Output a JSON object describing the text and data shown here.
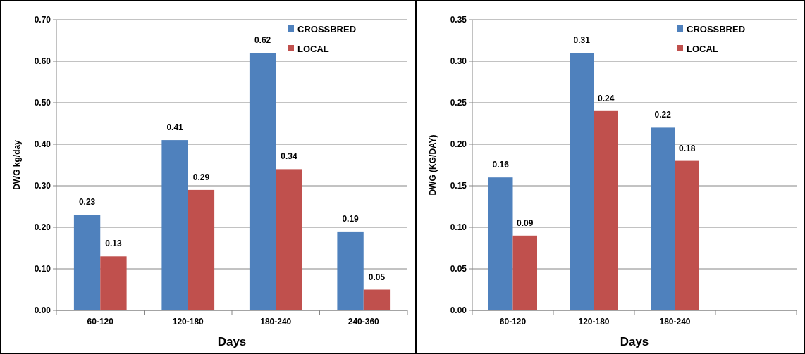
{
  "chart_data": [
    {
      "type": "bar",
      "xlabel": "Days",
      "ylabel": "DWG kg/day",
      "categories": [
        "60-120",
        "120-180",
        "180-240",
        "240-360"
      ],
      "series": [
        {
          "name": "CROSSBRED",
          "color": "#4f81bd",
          "values": [
            0.23,
            0.41,
            0.62,
            0.19
          ]
        },
        {
          "name": "LOCAL",
          "color": "#c0504d",
          "values": [
            0.13,
            0.29,
            0.34,
            0.05
          ]
        }
      ],
      "ylim": [
        0,
        0.7
      ],
      "yticks": [
        {
          "value": 0,
          "label": "0.00"
        },
        {
          "value": 0.1,
          "label": "0.10"
        },
        {
          "value": 0.2,
          "label": "0.20"
        },
        {
          "value": 0.3,
          "label": "0.30"
        },
        {
          "value": 0.4,
          "label": "0.40"
        },
        {
          "value": 0.5,
          "label": "0.50"
        },
        {
          "value": 0.6,
          "label": "0.60"
        },
        {
          "value": 0.7,
          "label": "0.70"
        }
      ],
      "grid": "y",
      "legend": "top right",
      "data_labels": true
    },
    {
      "type": "bar",
      "xlabel": "Days",
      "ylabel": "DWG (KG/DAY)",
      "categories": [
        "60-120",
        "120-180",
        "180-240",
        null
      ],
      "series": [
        {
          "name": "CROSSBRED",
          "color": "#4f81bd",
          "values": [
            0.16,
            0.31,
            0.22,
            null
          ]
        },
        {
          "name": "LOCAL",
          "color": "#c0504d",
          "values": [
            0.09,
            0.24,
            0.18,
            null
          ]
        }
      ],
      "ylim": [
        0,
        0.35
      ],
      "yticks": [
        {
          "value": 0,
          "label": "0.00"
        },
        {
          "value": 0.05,
          "label": "0.05"
        },
        {
          "value": 0.1,
          "label": "0.10"
        },
        {
          "value": 0.15,
          "label": "0.15"
        },
        {
          "value": 0.2,
          "label": "0.20"
        },
        {
          "value": 0.25,
          "label": "0.25"
        },
        {
          "value": 0.3,
          "label": "0.30"
        },
        {
          "value": 0.35,
          "label": "0.35"
        }
      ],
      "grid": "y",
      "legend": "top right",
      "data_labels": true
    }
  ]
}
